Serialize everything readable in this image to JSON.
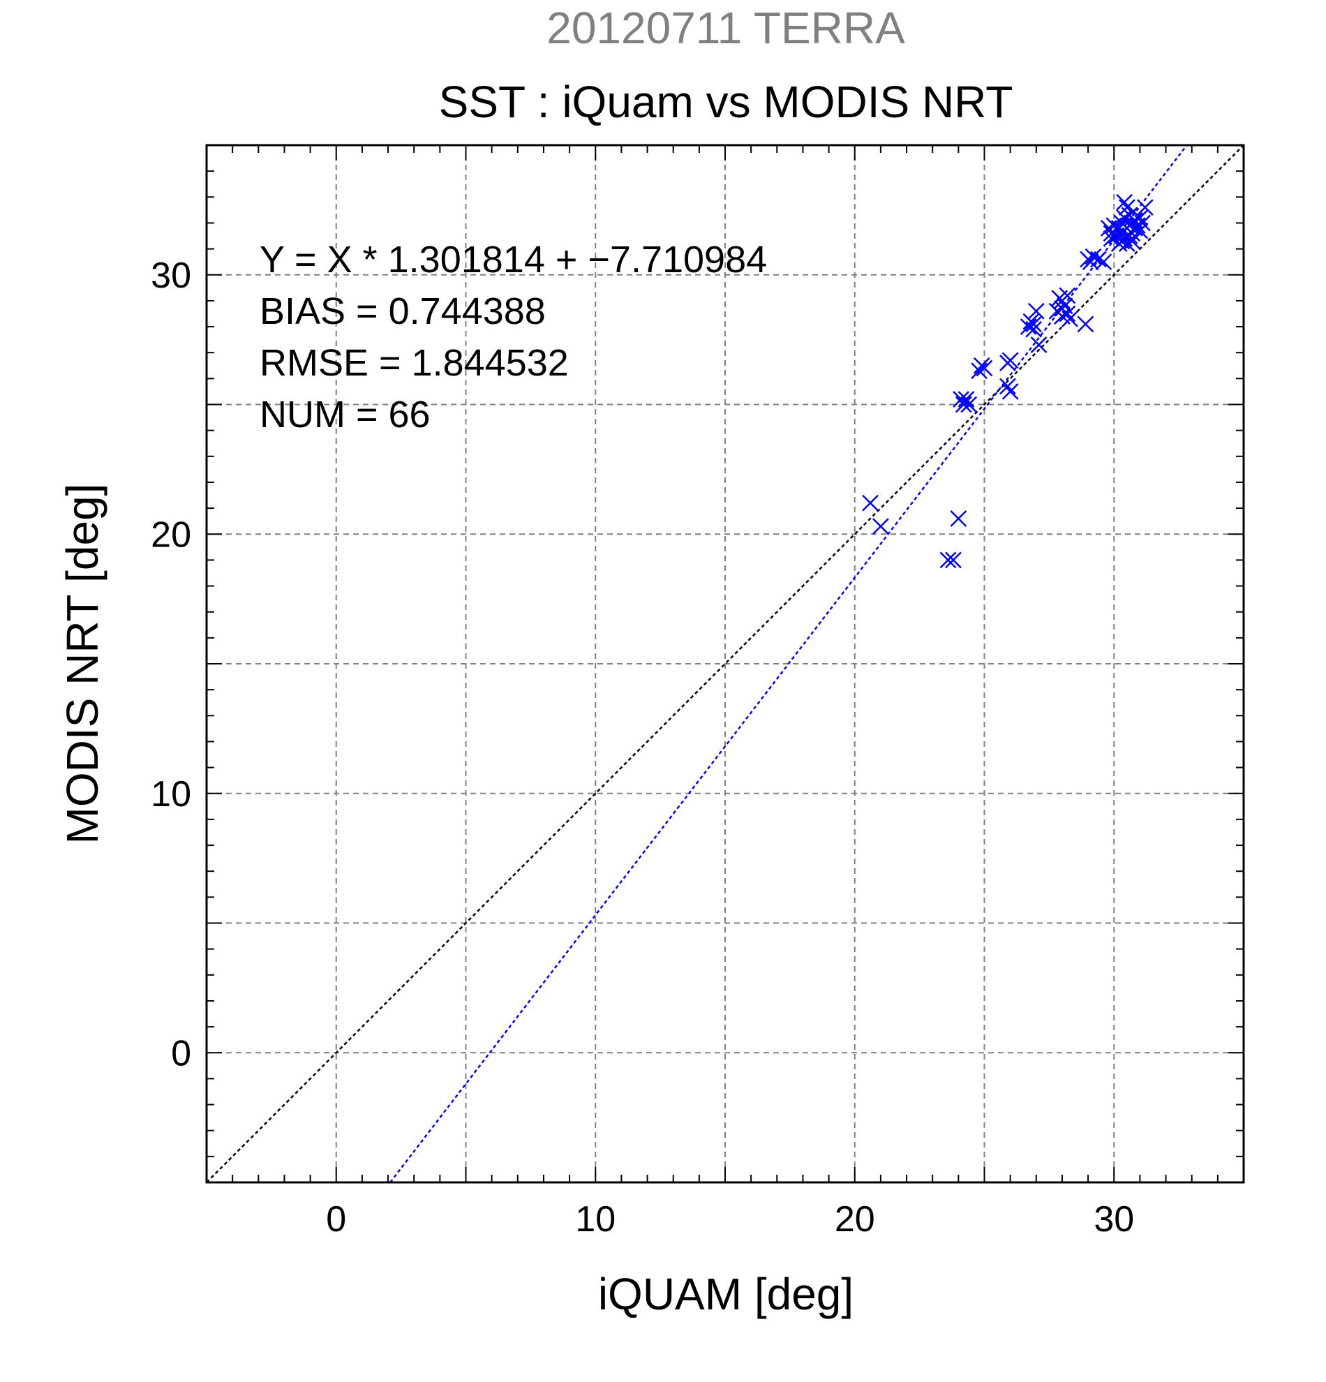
{
  "colors": {
    "background": "#ffffff",
    "frame": "#000000",
    "grid": "#808080",
    "supertitle": "#808080",
    "points": "#0000ff",
    "fit_line": "#0000ff",
    "identity_line": "#000000"
  },
  "chart_data": {
    "type": "scatter",
    "supertitle": "20120711 TERRA",
    "title": "SST : iQuam vs MODIS NRT",
    "xlabel": "iQUAM [deg]",
    "ylabel": "MODIS NRT [deg]",
    "xlim": [
      -5,
      35
    ],
    "ylim": [
      -5,
      35
    ],
    "xticks": [
      0,
      10,
      20,
      30
    ],
    "yticks": [
      0,
      10,
      20,
      30
    ],
    "minor_tick_step": 1,
    "grid": true,
    "grid_step": 5,
    "marker": "x",
    "stats": {
      "fit": "Y = X * 1.301814 + −7.710984",
      "bias": "BIAS = 0.744388",
      "rmse": "RMSE = 1.844532",
      "num": "NUM = 66"
    },
    "lines": [
      {
        "kind": "identity",
        "slope": 1,
        "intercept": 0
      },
      {
        "kind": "fit",
        "slope": 1.301814,
        "intercept": -7.710984
      }
    ],
    "points": [
      [
        20.6,
        21.2
      ],
      [
        21.0,
        20.3
      ],
      [
        23.6,
        19.0
      ],
      [
        23.8,
        19.0
      ],
      [
        24.0,
        20.6
      ],
      [
        24.1,
        25.2
      ],
      [
        24.2,
        25.0
      ],
      [
        24.3,
        25.2
      ],
      [
        24.4,
        25.0
      ],
      [
        24.8,
        26.3
      ],
      [
        24.9,
        26.5
      ],
      [
        25.0,
        26.4
      ],
      [
        25.9,
        25.7
      ],
      [
        26.0,
        25.5
      ],
      [
        25.9,
        26.6
      ],
      [
        26.0,
        26.7
      ],
      [
        26.7,
        28.0
      ],
      [
        26.8,
        28.2
      ],
      [
        26.9,
        28.1
      ],
      [
        27.0,
        28.6
      ],
      [
        27.1,
        27.3
      ],
      [
        27.8,
        28.6
      ],
      [
        27.9,
        29.1
      ],
      [
        28.0,
        29.0
      ],
      [
        28.0,
        28.7
      ],
      [
        28.0,
        28.4
      ],
      [
        28.1,
        28.8
      ],
      [
        28.2,
        28.5
      ],
      [
        28.3,
        28.3
      ],
      [
        28.9,
        28.1
      ],
      [
        29.0,
        30.6
      ],
      [
        29.1,
        30.5
      ],
      [
        29.2,
        30.7
      ],
      [
        29.4,
        30.6
      ],
      [
        29.6,
        30.5
      ],
      [
        29.8,
        31.8
      ],
      [
        29.9,
        31.6
      ],
      [
        30.0,
        31.9
      ],
      [
        30.1,
        31.5
      ],
      [
        30.2,
        31.2
      ],
      [
        30.2,
        31.8
      ],
      [
        30.3,
        32.0
      ],
      [
        30.3,
        31.6
      ],
      [
        30.4,
        32.2
      ],
      [
        30.4,
        31.4
      ],
      [
        30.4,
        32.8
      ],
      [
        30.5,
        31.8
      ],
      [
        30.5,
        31.2
      ],
      [
        30.5,
        32.6
      ],
      [
        30.6,
        31.5
      ],
      [
        30.6,
        31.9
      ],
      [
        30.7,
        31.6
      ],
      [
        30.7,
        32.0
      ],
      [
        30.7,
        31.3
      ],
      [
        30.8,
        31.8
      ],
      [
        30.8,
        32.1
      ],
      [
        30.9,
        31.9
      ],
      [
        31.0,
        32.2
      ],
      [
        31.0,
        31.7
      ],
      [
        31.1,
        32.0
      ],
      [
        31.2,
        32.6
      ],
      [
        30.3,
        31.3
      ],
      [
        30.6,
        32.3
      ],
      [
        29.9,
        31.4
      ],
      [
        28.2,
        29.2
      ],
      [
        26.9,
        27.9
      ]
    ]
  }
}
